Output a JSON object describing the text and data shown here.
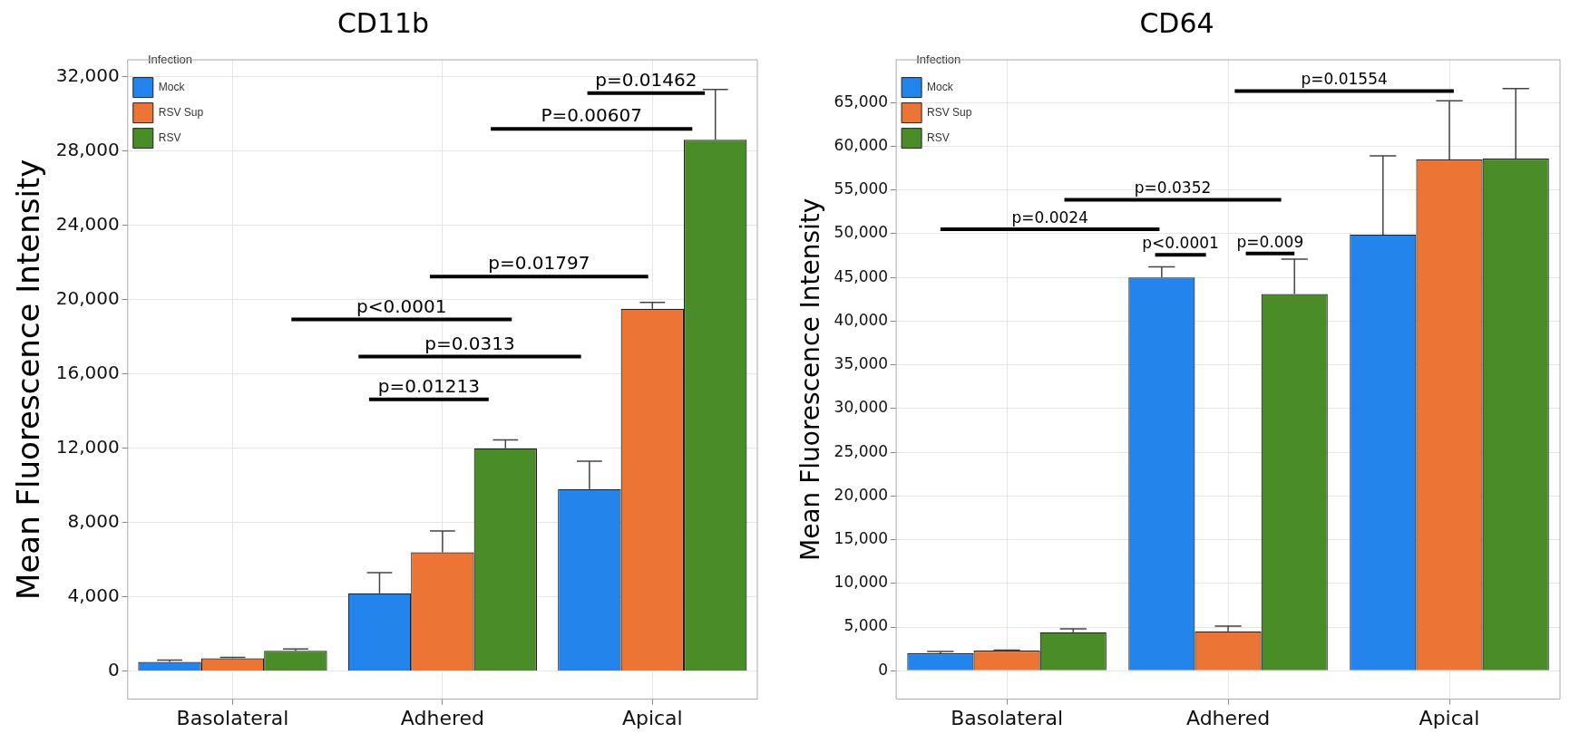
{
  "chart_data": [
    {
      "type": "bar",
      "title": "CD11b",
      "ylabel": "Mean Fluorescence Intensity",
      "legend_title": "Infection",
      "legend": "top left",
      "grid": true,
      "categories": [
        "Basolateral",
        "Adhered",
        "Apical"
      ],
      "ylim": [
        -1500,
        32900
      ],
      "yticks": [
        0,
        {
          "value": 4000,
          "label": "4,000"
        },
        {
          "value": 8000,
          "label": "8,000"
        },
        {
          "value": 12000,
          "label": "12,000"
        },
        {
          "value": 16000,
          "label": "16,000"
        },
        {
          "value": 20000,
          "label": "20,000"
        },
        {
          "value": 24000,
          "label": "24,000"
        },
        {
          "value": 28000,
          "label": "28,000"
        },
        {
          "value": 32000,
          "label": "32,000"
        }
      ],
      "series": [
        {
          "name": "Mock",
          "color": "#2384ec",
          "values": [
            500,
            4200,
            9800
          ],
          "errors": [
            [
              500,
              600
            ],
            [
              4200,
              5300
            ],
            [
              9800,
              11300
            ]
          ]
        },
        {
          "name": "RSV Sup",
          "color": "#ec7535",
          "values": [
            700,
            6400,
            19500
          ],
          "errors": [
            [
              700,
              750
            ],
            [
              6400,
              7550
            ],
            [
              19500,
              19850
            ]
          ]
        },
        {
          "name": "RSV",
          "color": "#4a8c28",
          "values": [
            1100,
            12000,
            28600
          ],
          "errors": [
            [
              1100,
              1200
            ],
            [
              12000,
              12450
            ],
            [
              28600,
              31300
            ]
          ]
        }
      ],
      "annotations": [
        "p=0.01462",
        "P=0.00607",
        "p=0.01797",
        "p<0.0001",
        "p=0.0313",
        "p=0.01213"
      ]
    },
    {
      "type": "bar",
      "title": "CD64",
      "ylabel": "Mean Fluorescence Intensity",
      "legend_title": "Infection",
      "legend": "top left",
      "grid": true,
      "categories": [
        "Basolateral",
        "Adhered",
        "Apical"
      ],
      "ylim": [
        -3250,
        69900
      ],
      "yticks": [
        0,
        {
          "value": 5000,
          "label": "5,000"
        },
        {
          "value": 10000,
          "label": "10,000"
        },
        {
          "value": 15000,
          "label": "15,000"
        },
        {
          "value": 20000,
          "label": "20,000"
        },
        {
          "value": 25000,
          "label": "25,000"
        },
        {
          "value": 30000,
          "label": "30,000"
        },
        {
          "value": 35000,
          "label": "35,000"
        },
        {
          "value": 40000,
          "label": "40,000"
        },
        {
          "value": 45000,
          "label": "45,000"
        },
        {
          "value": 50000,
          "label": "50,000"
        },
        {
          "value": 55000,
          "label": "55,000"
        },
        {
          "value": 60000,
          "label": "60,000"
        },
        {
          "value": 65000,
          "label": "65,000"
        }
      ],
      "series": [
        {
          "name": "Mock",
          "color": "#2384ec",
          "values": [
            2000,
            45000,
            49900
          ],
          "errors": [
            [
              2000,
              2200
            ],
            [
              45000,
              46200
            ],
            [
              49900,
              58900
            ]
          ]
        },
        {
          "name": "RSV Sup",
          "color": "#ec7535",
          "values": [
            2300,
            4500,
            58500
          ],
          "errors": [
            [
              2300,
              2350
            ],
            [
              4500,
              5100
            ],
            [
              58500,
              65200
            ]
          ]
        },
        {
          "name": "RSV",
          "color": "#4a8c28",
          "values": [
            4400,
            43100,
            58600
          ],
          "errors": [
            [
              4400,
              4800
            ],
            [
              43100,
              47100
            ],
            [
              58600,
              66600
            ]
          ]
        }
      ],
      "annotations": [
        "p=0.01554",
        "p=0.0352",
        "p=0.0024",
        "p<0.0001",
        "p=0.009"
      ]
    }
  ]
}
